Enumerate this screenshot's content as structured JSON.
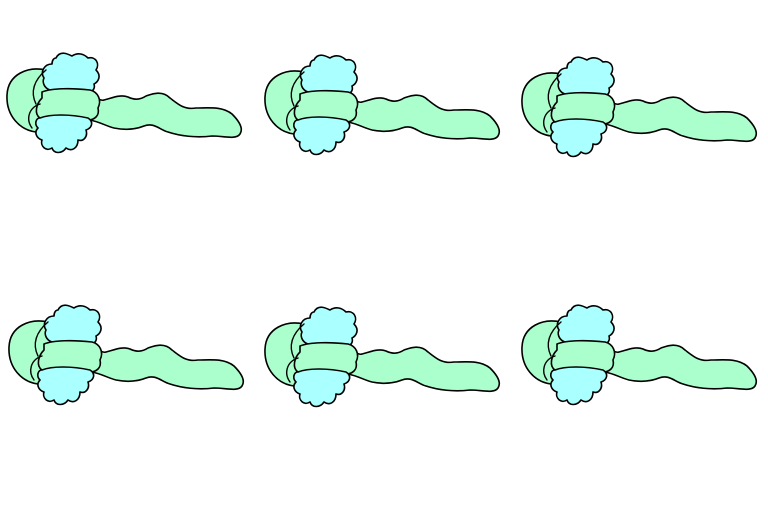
{
  "colors": {
    "background": "#ffffff",
    "outline": "#000000",
    "green_region": "#aaffcc",
    "cyan_lobe": "#aaffff"
  },
  "figures": [
    {
      "id": "figure-1"
    },
    {
      "id": "figure-2"
    },
    {
      "id": "figure-3"
    },
    {
      "id": "figure-4"
    },
    {
      "id": "figure-5"
    },
    {
      "id": "figure-6"
    }
  ]
}
